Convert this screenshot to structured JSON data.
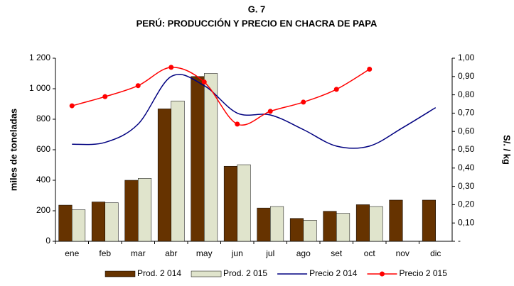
{
  "chart_data": {
    "type": "bar_line",
    "title": "G. 7",
    "subtitle": "PERÚ: PRODUCCIÓN Y PRECIO EN CHACRA DE PAPA",
    "y_label": "miles de toneladas",
    "y2_label": "S/. / kg",
    "categories": [
      "ene",
      "feb",
      "mar",
      "abr",
      "may",
      "jun",
      "jul",
      "ago",
      "set",
      "oct",
      "nov",
      "dic"
    ],
    "series": [
      {
        "name": "Prod. 2 014",
        "type": "bar",
        "color": "#663300",
        "values": [
          237,
          258,
          400,
          868,
          1080,
          492,
          218,
          150,
          197,
          240,
          270,
          270
        ]
      },
      {
        "name": "Prod. 2 015",
        "type": "bar",
        "color": "#e0e4cc",
        "values": [
          207,
          253,
          412,
          920,
          1100,
          502,
          228,
          138,
          183,
          228,
          null,
          null
        ]
      },
      {
        "name": "Precio 2 014",
        "type": "line",
        "axis": "y2",
        "color": "#000080",
        "values": [
          0.53,
          0.54,
          0.64,
          0.9,
          0.85,
          0.7,
          0.69,
          0.61,
          0.52,
          0.52,
          0.62,
          0.73
        ]
      },
      {
        "name": "Precio 2 015",
        "type": "line",
        "axis": "y2",
        "color": "#ff0000",
        "markers": true,
        "values": [
          0.74,
          0.79,
          0.85,
          0.95,
          0.87,
          0.64,
          0.71,
          0.76,
          0.83,
          0.94,
          null,
          null
        ]
      }
    ],
    "ylim": [
      0,
      1200
    ],
    "yticks": [
      0,
      200,
      400,
      600,
      800,
      {
        "value": 1000,
        "label": "1 000"
      },
      {
        "value": 1200,
        "label": "1 200"
      }
    ],
    "y2lim": [
      0,
      1.0
    ],
    "y2ticks": [
      {
        "value": 0,
        "label": "-"
      },
      {
        "value": 0.1,
        "label": "0,10"
      },
      {
        "value": 0.2,
        "label": "0,20"
      },
      {
        "value": 0.3,
        "label": "0,30"
      },
      {
        "value": 0.4,
        "label": "0,40"
      },
      {
        "value": 0.5,
        "label": "0,50"
      },
      {
        "value": 0.6,
        "label": "0,60"
      },
      {
        "value": 0.7,
        "label": "0,70"
      },
      {
        "value": 0.8,
        "label": "0,80"
      },
      {
        "value": 0.9,
        "label": "0,90"
      },
      {
        "value": 1.0,
        "label": "1,00"
      }
    ],
    "legend": "bottom",
    "grid": false
  }
}
